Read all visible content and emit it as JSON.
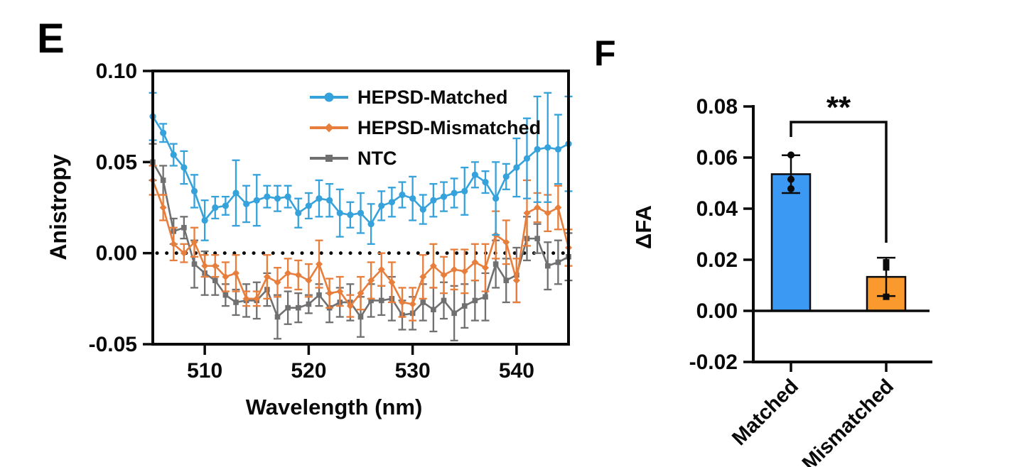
{
  "panels": {
    "e": {
      "label": "E"
    },
    "f": {
      "label": "F"
    }
  },
  "colors": {
    "matched_line": "#36A2DB",
    "mismatched_line": "#E87E3C",
    "ntc_line": "#707070",
    "matched_bar": "#3B98F3",
    "mismatched_bar": "#F9992E",
    "axis": "#0a0a0a"
  },
  "chart_data": [
    {
      "id": "E",
      "type": "line",
      "xlabel": "Wavelength (nm)",
      "ylabel": "Anistropy",
      "xlim": [
        505,
        545
      ],
      "ylim": [
        -0.05,
        0.1
      ],
      "x_start": 505,
      "x_step": 1,
      "xticks": [
        510,
        520,
        530,
        540
      ],
      "xtick_labels": [
        "510",
        "520",
        "530",
        "540"
      ],
      "yticks": [
        0.1,
        0.05,
        0.0,
        -0.05
      ],
      "ytick_labels": [
        "0.10",
        "0.05",
        "0.00",
        "-0.05"
      ],
      "grid": false,
      "zero_line": "dotted",
      "legend_position": "inside-top-right",
      "series": [
        {
          "name": "HEPSD-Matched",
          "color": "#36A2DB",
          "marker": "circle",
          "values": [
            0.075,
            0.066,
            0.054,
            0.047,
            0.034,
            0.018,
            0.025,
            0.026,
            0.033,
            0.027,
            0.029,
            0.031,
            0.03,
            0.031,
            0.022,
            0.026,
            0.03,
            0.029,
            0.022,
            0.021,
            0.022,
            0.016,
            0.026,
            0.028,
            0.032,
            0.03,
            0.024,
            0.029,
            0.031,
            0.033,
            0.034,
            0.043,
            0.039,
            0.03,
            0.042,
            0.047,
            0.052,
            0.057,
            0.058,
            0.057,
            0.06
          ],
          "errors": [
            0.013,
            0.005,
            0.006,
            0.009,
            0.009,
            0.011,
            0.006,
            0.005,
            0.018,
            0.01,
            0.014,
            0.006,
            0.007,
            0.006,
            0.008,
            0.007,
            0.01,
            0.009,
            0.013,
            0.007,
            0.011,
            0.011,
            0.008,
            0.008,
            0.007,
            0.012,
            0.008,
            0.009,
            0.008,
            0.008,
            0.013,
            0.007,
            0.006,
            0.02,
            0.007,
            0.016,
            0.022,
            0.029,
            0.03,
            0.019,
            0.026
          ]
        },
        {
          "name": "HEPSD-Mismatched",
          "color": "#E87E3C",
          "marker": "diamond",
          "values": [
            0.04,
            0.025,
            0.005,
            0.0,
            0.006,
            -0.007,
            -0.007,
            -0.013,
            -0.011,
            -0.025,
            -0.025,
            -0.013,
            -0.016,
            -0.011,
            -0.012,
            -0.015,
            -0.006,
            -0.022,
            -0.021,
            -0.029,
            -0.022,
            -0.015,
            -0.009,
            -0.016,
            -0.027,
            -0.028,
            -0.013,
            -0.007,
            -0.012,
            -0.009,
            -0.01,
            -0.005,
            -0.008,
            0.01,
            0.006,
            -0.015,
            0.022,
            0.025,
            0.022,
            0.025,
            0.003
          ],
          "errors": [
            0.008,
            0.007,
            0.009,
            0.005,
            0.008,
            0.006,
            0.006,
            0.008,
            0.01,
            0.004,
            0.004,
            0.012,
            0.008,
            0.008,
            0.008,
            0.009,
            0.013,
            0.008,
            0.008,
            0.006,
            0.009,
            0.01,
            0.009,
            0.011,
            0.008,
            0.009,
            0.012,
            0.012,
            0.01,
            0.011,
            0.012,
            0.01,
            0.013,
            0.013,
            0.012,
            0.012,
            0.018,
            0.008,
            0.01,
            0.012,
            0.01
          ]
        },
        {
          "name": "NTC",
          "color": "#707070",
          "marker": "square",
          "values": [
            0.05,
            0.04,
            0.012,
            0.014,
            -0.006,
            -0.011,
            -0.015,
            -0.023,
            -0.027,
            -0.026,
            -0.026,
            -0.02,
            -0.035,
            -0.03,
            -0.03,
            -0.028,
            -0.023,
            -0.03,
            -0.027,
            -0.027,
            -0.035,
            -0.026,
            -0.026,
            -0.025,
            -0.034,
            -0.033,
            -0.027,
            -0.031,
            -0.026,
            -0.033,
            -0.029,
            -0.026,
            -0.024,
            -0.006,
            -0.015,
            -0.012,
            0.008,
            0.008,
            -0.007,
            -0.005,
            -0.002
          ],
          "errors": [
            0.01,
            0.008,
            0.007,
            0.006,
            0.013,
            0.012,
            0.008,
            0.006,
            0.007,
            0.009,
            0.01,
            0.009,
            0.012,
            0.009,
            0.008,
            0.005,
            0.006,
            0.008,
            0.008,
            0.01,
            0.011,
            0.009,
            0.008,
            0.012,
            0.008,
            0.009,
            0.01,
            0.012,
            0.01,
            0.015,
            0.012,
            0.011,
            0.013,
            0.013,
            0.012,
            0.015,
            0.012,
            0.008,
            0.013,
            0.012,
            0.013
          ]
        }
      ]
    },
    {
      "id": "F",
      "type": "bar",
      "ylabel": "ΔFA",
      "categories": [
        "Matched",
        "Mismatched"
      ],
      "values": [
        0.0535,
        0.0133
      ],
      "errors": [
        0.0074,
        0.0075
      ],
      "bar_colors": [
        "#3B98F3",
        "#F9992E"
      ],
      "points": [
        [
          0.061,
          0.0515,
          0.0478
        ],
        [
          0.019,
          0.017,
          0.0055
        ]
      ],
      "point_markers": [
        "circle",
        "square"
      ],
      "ylim": [
        -0.02,
        0.08
      ],
      "yticks": [
        0.08,
        0.06,
        0.04,
        0.02,
        0.0,
        -0.02
      ],
      "ytick_labels": [
        "0.08",
        "0.06",
        "0.04",
        "0.02",
        "0.00",
        "-0.02"
      ],
      "grid": false,
      "significance": {
        "label": "**",
        "between": [
          "Matched",
          "Mismatched"
        ]
      }
    }
  ]
}
